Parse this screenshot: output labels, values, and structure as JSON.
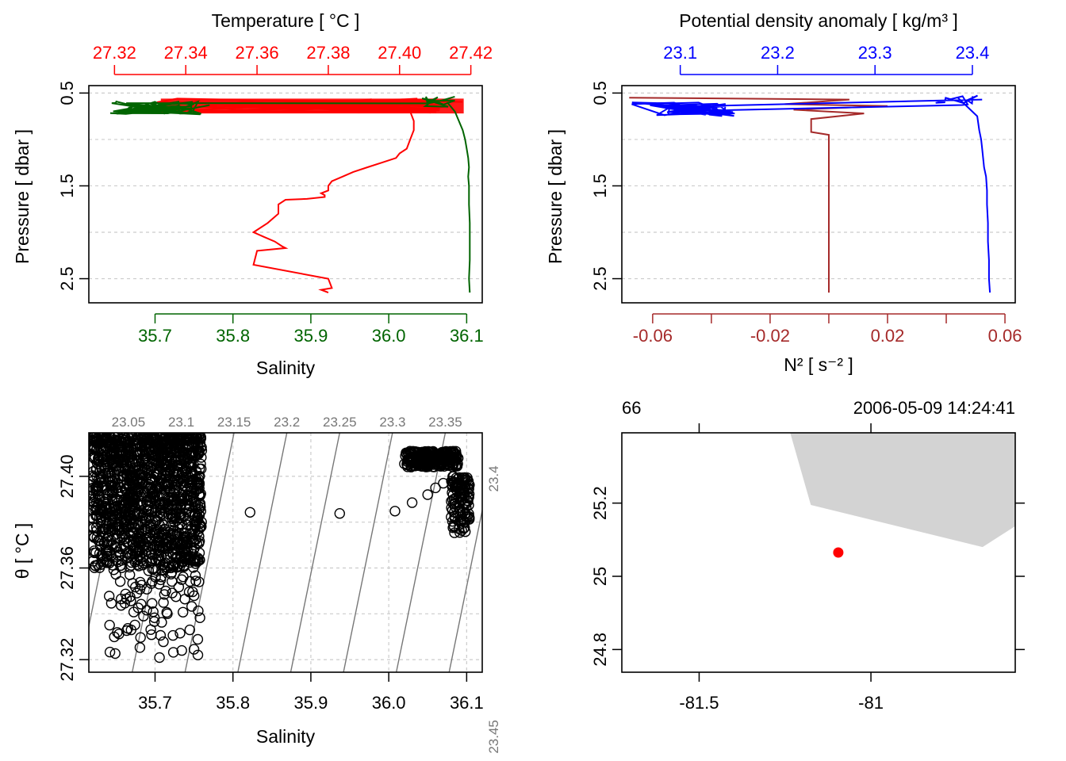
{
  "colors": {
    "temperature": "#ff0000",
    "salinity": "#006400",
    "density": "#0000ff",
    "n2": "#a52a2a",
    "isopycnal": "#777777",
    "grid": "#cccccc",
    "land": "#d3d3d3",
    "station": "#ff0000"
  },
  "chart_data": [
    {
      "type": "line",
      "panel": "top-left",
      "top_title": "Temperature [ °C ]",
      "bottom_title": "Salinity",
      "ylabel": "Pressure [ dbar ]",
      "y_reversed": true,
      "ylim": [
        2.76,
        0.42
      ],
      "y_ticks": [
        "0.5",
        "1.5",
        "2.5"
      ],
      "y_grid": [
        0.5,
        1.0,
        1.5,
        2.0,
        2.5
      ],
      "top_axis": {
        "lim": [
          27.3128,
          27.4232
        ],
        "ticks": [
          "27.32",
          "27.34",
          "27.36",
          "27.38",
          "27.40",
          "27.42"
        ]
      },
      "bottom_axis": {
        "lim": [
          35.615,
          36.12
        ],
        "ticks": [
          "35.7",
          "35.8",
          "35.9",
          "36.0",
          "36.1"
        ]
      },
      "series": [
        {
          "name": "Temperature",
          "axis": "top",
          "x": [
            27.403,
            27.404,
            27.404,
            27.403,
            27.402,
            27.4,
            27.399,
            27.395,
            27.391,
            27.387,
            27.384,
            27.381,
            27.38,
            27.38,
            27.378,
            27.379,
            27.379,
            27.374,
            27.368,
            27.366,
            27.366,
            27.363,
            27.359,
            27.362,
            27.365,
            27.367,
            27.368,
            27.36,
            27.359,
            27.38,
            27.381,
            27.378,
            27.38
          ],
          "y": [
            0.7,
            0.8,
            0.9,
            1.0,
            1.1,
            1.15,
            1.2,
            1.25,
            1.3,
            1.35,
            1.4,
            1.45,
            1.5,
            1.55,
            1.58,
            1.6,
            1.62,
            1.64,
            1.65,
            1.7,
            1.8,
            1.9,
            2.0,
            2.05,
            2.1,
            2.15,
            2.17,
            2.2,
            2.35,
            2.5,
            2.6,
            2.62,
            2.65
          ]
        },
        {
          "name": "Salinity",
          "axis": "bottom",
          "x": [
            36.075,
            36.08,
            36.085,
            36.09,
            36.095,
            36.098,
            36.1,
            36.102,
            36.103,
            36.102,
            36.103,
            36.103,
            36.104,
            36.104,
            36.104,
            36.103,
            36.104
          ],
          "y": [
            0.6,
            0.65,
            0.7,
            0.8,
            0.9,
            1.0,
            1.1,
            1.2,
            1.3,
            1.4,
            1.5,
            1.7,
            1.9,
            2.1,
            2.3,
            2.5,
            2.65
          ]
        }
      ]
    },
    {
      "type": "line",
      "panel": "top-right",
      "top_title": "Potential density anomaly [ kg/m³ ]",
      "bottom_title": "N² [ s⁻² ]",
      "ylabel": "Pressure [ dbar ]",
      "y_reversed": true,
      "ylim": [
        2.76,
        0.42
      ],
      "y_ticks": [
        "0.5",
        "1.5",
        "2.5"
      ],
      "y_grid": [
        0.5,
        1.0,
        1.5,
        2.0,
        2.5
      ],
      "top_axis": {
        "lim": [
          23.04,
          23.444
        ],
        "ticks": [
          "23.1",
          "23.2",
          "23.3",
          "23.4"
        ]
      },
      "bottom_axis": {
        "lim": [
          -0.0705,
          0.0635
        ],
        "ticks": [
          "-0.06",
          "-0.02",
          "0.02",
          "0.06"
        ],
        "minor_ticks": [
          -0.04,
          0.0,
          0.04
        ]
      },
      "series": [
        {
          "name": "Potential density anomaly",
          "axis": "top",
          "x": [
            23.385,
            23.395,
            23.405,
            23.407,
            23.409,
            23.41,
            23.411,
            23.412,
            23.414,
            23.415,
            23.415,
            23.416,
            23.416,
            23.417,
            23.417,
            23.418
          ],
          "y": [
            0.55,
            0.65,
            0.75,
            0.9,
            1.0,
            1.1,
            1.2,
            1.3,
            1.4,
            1.55,
            1.7,
            1.9,
            2.1,
            2.3,
            2.5,
            2.65
          ]
        },
        {
          "name": "N2",
          "axis": "bottom",
          "x": [
            -0.068,
            0.007,
            -0.015,
            0.02,
            -0.012,
            0.012,
            -0.006,
            -0.006,
            0.0,
            0.0,
            0.0,
            0.0,
            0.0,
            0.0,
            0.0
          ],
          "y": [
            0.55,
            0.57,
            0.62,
            0.64,
            0.68,
            0.72,
            0.78,
            0.92,
            0.95,
            1.1,
            1.4,
            1.8,
            2.2,
            2.5,
            2.65
          ]
        }
      ]
    },
    {
      "type": "scatter",
      "panel": "bottom-left",
      "xlabel": "Salinity",
      "ylabel": "θ [ °C ]",
      "xlim": [
        35.615,
        36.12
      ],
      "ylim": [
        27.3145,
        27.419
      ],
      "x_ticks": [
        "35.7",
        "35.8",
        "35.9",
        "36.0",
        "36.1"
      ],
      "y_ticks": [
        "27.32",
        "27.36",
        "27.40"
      ],
      "isopycnals": {
        "labels": [
          "23.05",
          "23.1",
          "23.15",
          "23.2",
          "23.25",
          "23.3",
          "23.35",
          "23.4",
          "23.45"
        ],
        "values": [
          23.05,
          23.1,
          23.15,
          23.2,
          23.25,
          23.3,
          23.35,
          23.4,
          23.45
        ]
      },
      "clusters": [
        {
          "s": [
            35.62,
            35.76
          ],
          "t": [
            27.36,
            27.418
          ],
          "count": 1400
        },
        {
          "s": [
            35.64,
            35.76
          ],
          "t": [
            27.32,
            27.36
          ],
          "count": 90
        },
        {
          "s": [
            36.02,
            36.09
          ],
          "t": [
            27.404,
            27.411
          ],
          "count": 260
        },
        {
          "s": [
            36.08,
            36.105
          ],
          "t": [
            27.374,
            27.4
          ],
          "count": 120
        }
      ],
      "points": [
        {
          "s": 35.822,
          "t": 27.3843
        },
        {
          "s": 35.937,
          "t": 27.3838
        },
        {
          "s": 36.008,
          "t": 27.3848
        },
        {
          "s": 36.03,
          "t": 27.3885
        },
        {
          "s": 36.05,
          "t": 27.392
        },
        {
          "s": 36.06,
          "t": 27.395
        },
        {
          "s": 36.07,
          "t": 27.397
        },
        {
          "s": 35.75,
          "t": 27.3245
        },
        {
          "s": 35.755,
          "t": 27.322
        }
      ]
    },
    {
      "type": "map",
      "panel": "bottom-right",
      "top_left_label": "66",
      "top_right_label": "2006-05-09 14:24:41",
      "x_ticks": [
        "-81.5",
        "-81"
      ],
      "y_ticks": [
        "24.8",
        "25",
        "25.2"
      ],
      "xlim": [
        -81.725,
        -80.58
      ],
      "ylim": [
        24.738,
        25.392
      ],
      "station": {
        "lon": -81.095,
        "lat": 25.065
      },
      "land_polygon": [
        [
          -81.235,
          25.392
        ],
        [
          -80.58,
          25.392
        ],
        [
          -80.58,
          25.137
        ],
        [
          -80.675,
          25.08
        ],
        [
          -81.175,
          25.195
        ],
        [
          -81.235,
          25.392
        ]
      ]
    }
  ]
}
